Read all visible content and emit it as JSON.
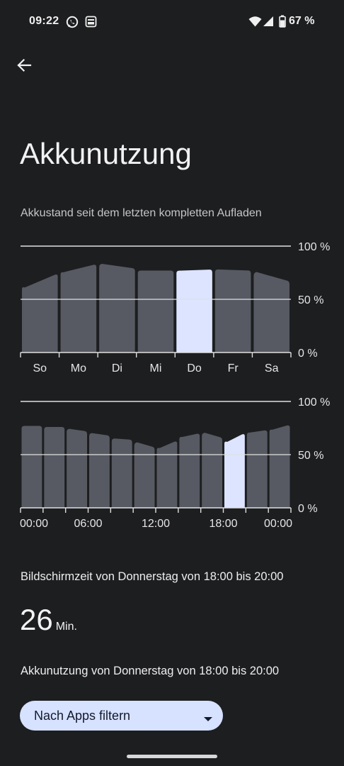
{
  "status_bar": {
    "time": "09:22",
    "battery_percent": "67 %",
    "icons": [
      "whatsapp-icon",
      "notification-card-icon",
      "wifi-icon",
      "cellular-signal-icon",
      "battery-icon"
    ]
  },
  "header": {
    "back_icon": "arrow-back-icon"
  },
  "page": {
    "title": "Akkunutzung",
    "chart_caption": "Akkustand seit dem letzten kompletten Aufladen"
  },
  "chart_data": [
    {
      "type": "bar",
      "categories": [
        "So",
        "Mo",
        "Di",
        "Mi",
        "Do",
        "Fr",
        "Sa"
      ],
      "ylim": [
        0,
        100
      ],
      "y_ticks": [
        "100 %",
        "50 %",
        "0 %"
      ],
      "grid": true,
      "highlighted_index": 4,
      "values": [
        [
          62,
          74
        ],
        [
          76,
          83
        ],
        [
          83,
          79
        ],
        [
          77,
          77
        ],
        [
          77,
          78
        ],
        [
          78,
          77
        ],
        [
          75,
          67
        ]
      ]
    },
    {
      "type": "bar",
      "x_tick_labels": [
        "00:00",
        "06:00",
        "12:00",
        "18:00",
        "00:00"
      ],
      "ylim": [
        0,
        100
      ],
      "y_ticks": [
        "100 %",
        "50 %",
        "0 %"
      ],
      "grid": true,
      "highlighted_index": 9,
      "values": [
        [
          77,
          77
        ],
        [
          76,
          76
        ],
        [
          74,
          72
        ],
        [
          70,
          68
        ],
        [
          65,
          64
        ],
        [
          61,
          57
        ],
        [
          57,
          63
        ],
        [
          67,
          70
        ],
        [
          70,
          66
        ],
        [
          63,
          70
        ],
        [
          71,
          73
        ],
        [
          74,
          78
        ]
      ]
    }
  ],
  "screen_time": {
    "label": "Bildschirmzeit von Donnerstag von 18:00 bis 20:00",
    "value": "26",
    "unit": "Min."
  },
  "usage": {
    "label": "Akkunutzung von Donnerstag von 18:00 bis 20:00"
  },
  "filter": {
    "label": "Nach Apps filtern",
    "icon": "dropdown-arrow-icon"
  },
  "colors": {
    "background": "#1d1e20",
    "bar": "#575a62",
    "bar_highlight": "#dde4ff",
    "gridline": "#e0e0e0",
    "filter_chip": "#d6e2ff"
  }
}
